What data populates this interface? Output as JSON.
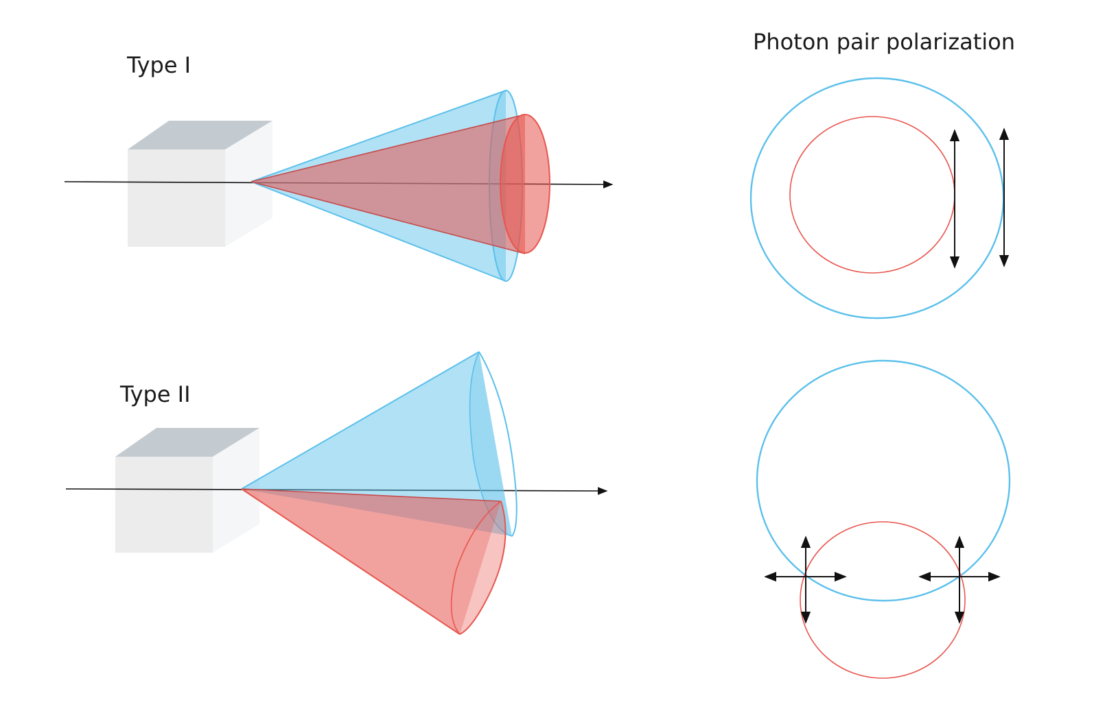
{
  "labels": {
    "type1": "Type I",
    "type2": "Type II",
    "polarization_title": "Photon pair polarization"
  },
  "colors": {
    "blue": "#5bc0eb",
    "blue_fill": "#9bd8f2",
    "red": "#e8554e",
    "red_fill": "#f08a84",
    "overlap": "#b56a74",
    "crystal_top": "#c3cbd1",
    "crystal_front": "#ececec",
    "crystal_side": "#f5f6f7",
    "axis": "#111111"
  }
}
